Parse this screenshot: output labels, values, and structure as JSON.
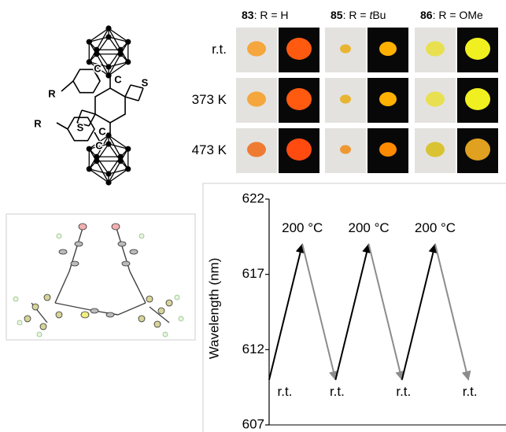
{
  "structure": {
    "labels": [
      "R",
      "R",
      "C",
      "C",
      "C",
      "C",
      "S",
      "S"
    ]
  },
  "photos": {
    "headers": [
      {
        "bold": "83",
        "text": ": R = H"
      },
      {
        "bold": "85",
        "text": ": R = ",
        "italic": "t",
        "tail": "Bu"
      },
      {
        "bold": "86",
        "text": ": R = OMe"
      }
    ],
    "rows": [
      "r.t.",
      "373 K",
      "473 K"
    ]
  },
  "chart_data": {
    "type": "line",
    "y_label": "Wavelength (nm)",
    "categories": [
      "r.t.",
      "200 °C",
      "r.t.",
      "200 °C",
      "r.t.",
      "200 °C",
      "r.t."
    ],
    "values": [
      610,
      619,
      610,
      619,
      610,
      619,
      610
    ],
    "up_color": "#000000",
    "down_color": "#8c8c8c",
    "ylim": [
      607,
      622
    ],
    "yticks": [
      607,
      612,
      617,
      622
    ]
  }
}
